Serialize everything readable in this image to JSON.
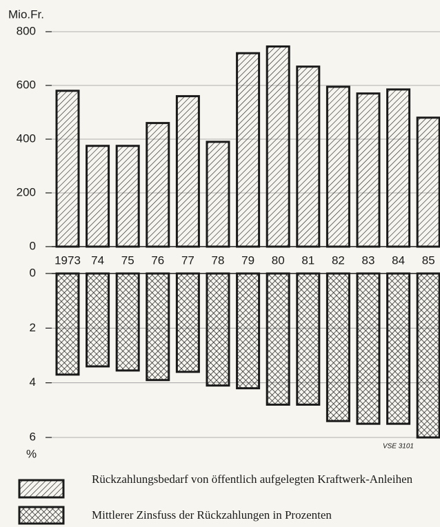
{
  "chart_data": [
    {
      "type": "bar",
      "y_label": "Mio.Fr.",
      "categories": [
        "1973",
        "74",
        "75",
        "76",
        "77",
        "78",
        "79",
        "80",
        "81",
        "82",
        "83",
        "84",
        "85"
      ],
      "series": [
        {
          "name": "Rückzahlungsbedarf von öffentlich aufgelegten Kraftwerk-Anleihen",
          "color": "#1a1a1a",
          "pattern": "hatch",
          "values": [
            580,
            375,
            375,
            460,
            560,
            390,
            720,
            745,
            670,
            595,
            570,
            585,
            480
          ]
        }
      ],
      "ylim": [
        0,
        800
      ],
      "yticks": [
        0,
        200,
        400,
        600,
        800
      ],
      "grid": true
    },
    {
      "type": "bar",
      "y_label": "%",
      "annotation": "VSE 3101",
      "inverted": true,
      "series": [
        {
          "name": "Mittlerer Zinsfuss der Rückzahlungen in Prozenten",
          "color": "#1a1a1a",
          "pattern": "crosshatch",
          "values": [
            3.7,
            3.4,
            3.55,
            3.9,
            3.6,
            4.1,
            4.2,
            4.8,
            4.8,
            5.4,
            5.5,
            5.5,
            6.0
          ]
        }
      ],
      "ylim": [
        0,
        6
      ],
      "yticks": [
        0,
        2,
        4,
        6
      ],
      "grid": true
    }
  ]
}
